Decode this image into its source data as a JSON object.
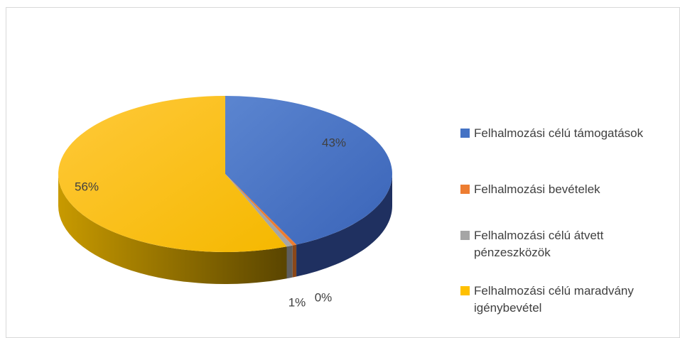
{
  "chart_data": {
    "type": "pie",
    "categories": [
      "Felhalmozási célú támogatások",
      "Felhalmozási bevételek",
      "Felhalmozási célú átvett pénzeszközök",
      "Felhalmozási célú maradvány igénybevétel"
    ],
    "values": [
      43,
      0.4,
      0.6,
      56
    ],
    "value_labels": [
      "43%",
      "0%",
      "1%",
      "56%"
    ],
    "colors": [
      "#4472c4",
      "#ed7d31",
      "#a5a5a5",
      "#ffc000"
    ],
    "legend": "right"
  }
}
